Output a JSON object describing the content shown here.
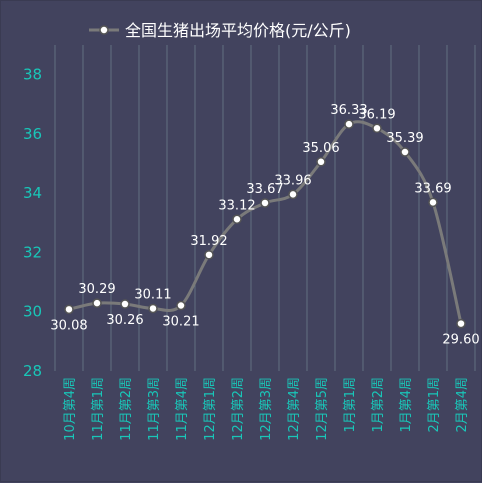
{
  "chart_data": {
    "type": "line",
    "title": "",
    "xlabel": "",
    "ylabel": "",
    "legend_position": "top",
    "smooth": true,
    "grid": {
      "vertical": true,
      "horizontal": false
    },
    "ylim": [
      28,
      39
    ],
    "yticks": [
      28,
      30,
      32,
      34,
      36,
      38
    ],
    "categories": [
      "10月第4周",
      "11月第1周",
      "11月第2周",
      "11月第3周",
      "11月第4周",
      "12月第1周",
      "12月第2周",
      "12月第3周",
      "12月第4周",
      "12月第5周",
      "1月第1周",
      "1月第2周",
      "1月第4周",
      "2月第1周",
      "2月第4周"
    ],
    "series": [
      {
        "name": "全国生猪出场平均价格(元/公斤)",
        "values": [
          30.08,
          30.29,
          30.26,
          30.11,
          30.21,
          31.92,
          33.12,
          33.67,
          33.96,
          35.06,
          36.33,
          36.19,
          35.39,
          33.69,
          29.6
        ],
        "labels": [
          "30.08",
          "30.29",
          "30.26",
          "30.11",
          "30.21",
          "31.92",
          "33.12",
          "33.67",
          "33.96",
          "35.06",
          "36.33",
          "36.19",
          "35.39",
          "33.69",
          "29.60"
        ]
      }
    ],
    "colors": {
      "background": "#42435e",
      "line": "#7a7a7a",
      "marker_fill": "#ffffff",
      "marker_stroke": "#555555",
      "tick_text": "#19c6b8",
      "grid": "#6b7c8a",
      "label_text": "#ffffff"
    }
  }
}
